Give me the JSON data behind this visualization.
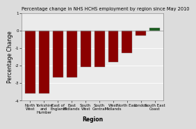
{
  "title": "Percentage change in NHS HCHS employment by region since May 2010",
  "xlabel": "Region",
  "ylabel": "Percentage Change",
  "categories": [
    "North\nWest",
    "Yorkshire\nand\nHumber",
    "East of\nEngland",
    "East\nMidlands",
    "South\nWest",
    "South\nCentral",
    "West\nMidlands",
    "North East",
    "London",
    "South East\nCoast"
  ],
  "values": [
    -3.6,
    -3.6,
    -2.7,
    -2.7,
    -2.1,
    -2.1,
    -1.8,
    -1.3,
    -0.3,
    0.15
  ],
  "bar_colors": [
    "#8B0000",
    "#8B0000",
    "#8B0000",
    "#8B0000",
    "#8B0000",
    "#8B0000",
    "#8B0000",
    "#8B0000",
    "#8B0000",
    "#1B5E20"
  ],
  "ylim": [
    -4,
    1
  ],
  "yticks": [
    -4,
    -3,
    -2,
    -1,
    0,
    1
  ],
  "background_color": "#DCDCDC",
  "plot_bg_color": "#EBEBEB",
  "title_fontsize": 4.8,
  "axis_label_fontsize": 5.5,
  "tick_fontsize": 4.0,
  "bar_width": 0.75
}
